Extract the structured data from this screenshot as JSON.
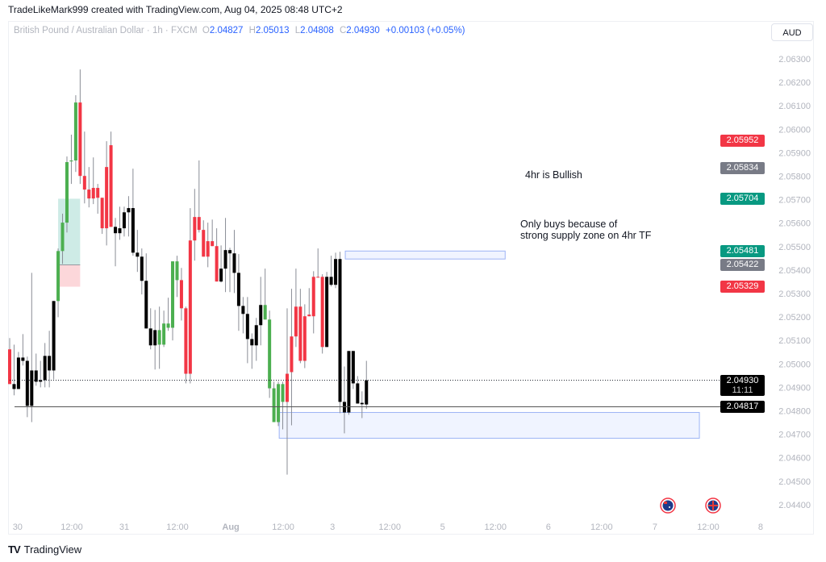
{
  "caption": "TradeLikeMark999 created with TradingView.com, Aug 04, 2025 08:48 UTC+2",
  "legend": {
    "symbol": "British Pound / Australian Dollar · 1h · FXCM",
    "o_label": "O",
    "o": "2.04827",
    "h_label": "H",
    "h": "2.05013",
    "l_label": "L",
    "l": "2.04808",
    "c_label": "C",
    "c": "2.04930",
    "change": "+0.00103 (+0.05%)"
  },
  "currency_button": "AUD",
  "colors": {
    "up": "#4caf50",
    "down": "#f23645",
    "neutral": "#000000",
    "accent": "#2962ff",
    "grey_label": "#787b86",
    "green_label": "#089981",
    "red_label": "#f23645"
  },
  "price_axis": {
    "ticks": [
      "2.06300",
      "2.06200",
      "2.06100",
      "2.06000",
      "2.05900",
      "2.05800",
      "2.05700",
      "2.05600",
      "2.05500",
      "2.05400",
      "2.05300",
      "2.05200",
      "2.05100",
      "2.05000",
      "2.04900",
      "2.04800",
      "2.04700",
      "2.04600",
      "2.04500",
      "2.04400"
    ],
    "range": [
      2.044,
      2.063
    ]
  },
  "time_axis": {
    "ticks": [
      {
        "label": "30",
        "bar": 1.8,
        "bold": false
      },
      {
        "label": "12:00",
        "bar": 14.1,
        "bold": false
      },
      {
        "label": "31",
        "bar": 26,
        "bold": false
      },
      {
        "label": "12:00",
        "bar": 38.1,
        "bold": false
      },
      {
        "label": "Aug",
        "bar": 50.2,
        "bold": true
      },
      {
        "label": "12:00",
        "bar": 62.1,
        "bold": false
      },
      {
        "label": "3",
        "bar": 73.3,
        "bold": false
      },
      {
        "label": "12:00",
        "bar": 86.3,
        "bold": false
      },
      {
        "label": "5",
        "bar": 98.3,
        "bold": false
      },
      {
        "label": "12:00",
        "bar": 110.3,
        "bold": false
      },
      {
        "label": "6",
        "bar": 122.3,
        "bold": false
      },
      {
        "label": "12:00",
        "bar": 134.4,
        "bold": false
      },
      {
        "label": "7",
        "bar": 146.5,
        "bold": false
      },
      {
        "label": "12:00",
        "bar": 158.6,
        "bold": false
      },
      {
        "label": "8",
        "bar": 170.5,
        "bold": false
      }
    ]
  },
  "price_labels": [
    {
      "value": "2.05952",
      "color": "#f23645"
    },
    {
      "value": "2.05834",
      "color": "#787b86"
    },
    {
      "value": "2.05704",
      "color": "#089981"
    },
    {
      "value": "2.05481",
      "color": "#089981"
    },
    {
      "value": "2.05422",
      "color": "#787b86"
    },
    {
      "value": "2.05329",
      "color": "#f23645"
    }
  ],
  "current_price": {
    "value": "2.04930",
    "countdown": "11:11"
  },
  "hline": {
    "value": "2.04817"
  },
  "notes": {
    "bullish": "4hr is Bullish",
    "buys_line1": "Only buys  because of",
    "buys_line2": "strong supply zone on 4hr TF"
  },
  "drawings": {
    "demand_zone": {
      "top": 2.04793,
      "bottom": 2.04683,
      "from_bar": 61.2,
      "to_bar": 156.6
    },
    "supply_zone": {
      "top": 2.05481,
      "bottom": 2.05447,
      "from_bar": 76.2,
      "to_bar": 112.5
    },
    "long_position": {
      "entry": 2.05422,
      "target": 2.05704,
      "stop": 2.05329,
      "from_bar": 11,
      "to_bar": 16
    }
  },
  "events": [
    "australia-flag",
    "uk-flag"
  ],
  "footer_brand": "TradingView",
  "chart_data": {
    "type": "candlestick",
    "symbol": "GBPAUD",
    "timeframe": "1h",
    "columns": [
      "open",
      "high",
      "low",
      "close",
      "color"
    ],
    "candles": [
      [
        2.05062,
        2.0511,
        2.04914,
        2.04914,
        "r"
      ],
      [
        2.04914,
        2.05082,
        2.04866,
        2.04893,
        "k"
      ],
      [
        2.05027,
        2.05051,
        2.04893,
        2.04893,
        "k"
      ],
      [
        2.05027,
        2.05127,
        2.04993,
        2.05013,
        "k"
      ],
      [
        2.05013,
        2.05031,
        2.04773,
        2.04821,
        "k"
      ],
      [
        2.04972,
        2.05388,
        2.04752,
        2.04821,
        "k"
      ],
      [
        2.04972,
        2.05044,
        2.04907,
        2.04924,
        "k"
      ],
      [
        2.04931,
        2.05013,
        2.049,
        2.04924,
        "k"
      ],
      [
        2.05034,
        2.05089,
        2.049,
        2.04931,
        "k"
      ],
      [
        2.05034,
        2.05141,
        2.049,
        2.04972,
        "k"
      ],
      [
        2.05268,
        2.05268,
        2.04934,
        2.04972,
        "k"
      ],
      [
        2.05268,
        2.05492,
        2.05199,
        2.05481,
        "g"
      ],
      [
        2.05481,
        2.0564,
        2.05426,
        2.05602,
        "g"
      ],
      [
        2.05602,
        2.05884,
        2.0556,
        2.0586,
        "g"
      ],
      [
        2.05863,
        2.05977,
        2.05767,
        2.05867,
        "g"
      ],
      [
        2.05867,
        2.06145,
        2.05818,
        2.06114,
        "g"
      ],
      [
        2.06114,
        2.06255,
        2.05767,
        2.05801,
        "r"
      ],
      [
        2.05801,
        2.0599,
        2.05684,
        2.05743,
        "r"
      ],
      [
        2.05743,
        2.05839,
        2.05667,
        2.05705,
        "r"
      ],
      [
        2.0575,
        2.0588,
        2.05681,
        2.05705,
        "r"
      ],
      [
        2.0575,
        2.05767,
        2.0564,
        2.05708,
        "r"
      ],
      [
        2.05708,
        2.05708,
        2.05554,
        2.05578,
        "r"
      ],
      [
        2.05839,
        2.05949,
        2.05505,
        2.05578,
        "r"
      ],
      [
        2.05932,
        2.0599,
        2.05584,
        2.05584,
        "r"
      ],
      [
        2.05584,
        2.05622,
        2.05416,
        2.05557,
        "k"
      ],
      [
        2.05578,
        2.0567,
        2.05529,
        2.05557,
        "k"
      ],
      [
        2.05646,
        2.0567,
        2.05543,
        2.05578,
        "k"
      ],
      [
        2.05664,
        2.05715,
        2.05543,
        2.05646,
        "k"
      ],
      [
        2.05664,
        2.05832,
        2.05461,
        2.05474,
        "k"
      ],
      [
        2.05474,
        2.05571,
        2.05392,
        2.05457,
        "k"
      ],
      [
        2.05457,
        2.05492,
        2.05296,
        2.05354,
        "k"
      ],
      [
        2.05354,
        2.05471,
        2.05151,
        2.05151,
        "k"
      ],
      [
        2.05151,
        2.05237,
        2.05062,
        2.05079,
        "k"
      ],
      [
        2.05144,
        2.0523,
        2.04976,
        2.05079,
        "k"
      ],
      [
        2.05082,
        2.05244,
        2.04979,
        2.05144,
        "g"
      ],
      [
        2.05082,
        2.05227,
        2.05072,
        2.05172,
        "g"
      ],
      [
        2.05154,
        2.05282,
        2.05141,
        2.05172,
        "g"
      ],
      [
        2.05154,
        2.05437,
        2.051,
        2.05437,
        "g"
      ],
      [
        2.05357,
        2.05461,
        2.05285,
        2.05437,
        "g"
      ],
      [
        2.05357,
        2.05409,
        2.05185,
        2.05237,
        "r"
      ],
      [
        2.05237,
        2.05244,
        2.04917,
        2.04958,
        "r"
      ],
      [
        2.05526,
        2.05664,
        2.04917,
        2.04958,
        "r"
      ],
      [
        2.05626,
        2.05746,
        2.0544,
        2.05526,
        "r"
      ],
      [
        2.05626,
        2.05867,
        2.0556,
        2.05571,
        "r"
      ],
      [
        2.05571,
        2.05612,
        2.05457,
        2.05457,
        "r"
      ],
      [
        2.05523,
        2.05602,
        2.05412,
        2.05457,
        "r"
      ],
      [
        2.05523,
        2.05615,
        2.05502,
        2.05502,
        "r"
      ],
      [
        2.05502,
        2.05578,
        2.05351,
        2.05351,
        "r"
      ],
      [
        2.05406,
        2.05505,
        2.05347,
        2.05351,
        "k"
      ],
      [
        2.05485,
        2.05622,
        2.05306,
        2.05406,
        "k"
      ],
      [
        2.05485,
        2.05495,
        2.05306,
        2.05471,
        "k"
      ],
      [
        2.05471,
        2.05571,
        2.05302,
        2.05388,
        "k"
      ],
      [
        2.05388,
        2.05468,
        2.05141,
        2.05247,
        "k"
      ],
      [
        2.05247,
        2.05285,
        2.0513,
        2.05213,
        "k"
      ],
      [
        2.05213,
        2.05285,
        2.05003,
        2.05106,
        "k"
      ],
      [
        2.05106,
        2.0513,
        2.04979,
        2.05079,
        "k"
      ],
      [
        2.05165,
        2.05196,
        2.05013,
        2.05079,
        "k"
      ],
      [
        2.05251,
        2.05371,
        2.05079,
        2.05165,
        "k"
      ],
      [
        2.05189,
        2.05406,
        2.05189,
        2.05251,
        "g"
      ],
      [
        2.04896,
        2.05227,
        2.04855,
        2.05189,
        "g"
      ],
      [
        2.04752,
        2.04924,
        2.04752,
        2.04896,
        "g"
      ],
      [
        2.04752,
        2.04924,
        2.04735,
        2.04914,
        "g"
      ],
      [
        2.04838,
        2.04924,
        2.04721,
        2.04914,
        "g"
      ],
      [
        2.04958,
        2.05237,
        2.04528,
        2.04838,
        "r"
      ],
      [
        2.05117,
        2.0532,
        2.04738,
        2.04965,
        "r"
      ],
      [
        2.05244,
        2.05406,
        2.05072,
        2.05117,
        "r"
      ],
      [
        2.05244,
        2.0532,
        2.05003,
        2.05013,
        "r"
      ],
      [
        2.05203,
        2.05254,
        2.04982,
        2.05013,
        "r"
      ],
      [
        2.0521,
        2.05323,
        2.05203,
        2.05203,
        "r"
      ],
      [
        2.05371,
        2.05395,
        2.0513,
        2.05203,
        "r"
      ],
      [
        2.05371,
        2.05492,
        2.05368,
        2.05368,
        "r"
      ],
      [
        2.05371,
        2.05382,
        2.05044,
        2.05072,
        "r"
      ],
      [
        2.05072,
        2.05392,
        2.05072,
        2.05371,
        "k"
      ],
      [
        2.05337,
        2.05461,
        2.0533,
        2.05371,
        "k"
      ],
      [
        2.05337,
        2.05474,
        2.05323,
        2.05447,
        "k"
      ],
      [
        2.05447,
        2.05478,
        2.0479,
        2.04838,
        "k"
      ],
      [
        2.04838,
        2.04989,
        2.04704,
        2.04793,
        "k"
      ],
      [
        2.04793,
        2.05055,
        2.04783,
        2.05055,
        "k"
      ],
      [
        2.05055,
        2.05055,
        2.04893,
        2.04917,
        "k"
      ],
      [
        2.04917,
        2.04948,
        2.04831,
        2.04831,
        "k"
      ],
      [
        2.04834,
        2.04883,
        2.04769,
        2.04828,
        "k"
      ],
      [
        2.04827,
        2.05013,
        2.04808,
        2.0493,
        "k"
      ]
    ]
  }
}
